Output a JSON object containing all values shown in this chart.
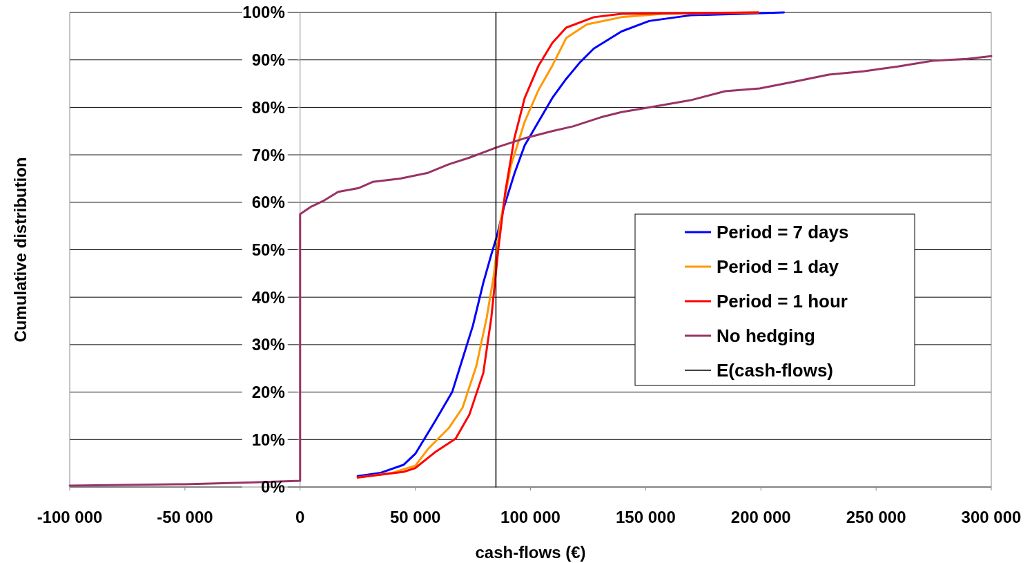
{
  "chart_data": {
    "type": "line",
    "xlabel": "cash-flows (€)",
    "ylabel": "Cumulative distribution",
    "xlim": [
      -100000,
      300000
    ],
    "ylim": [
      0,
      100
    ],
    "xticks": [
      {
        "value": -100000,
        "label": "-100 000"
      },
      {
        "value": -50000,
        "label": "-50 000"
      },
      {
        "value": 0,
        "label": "0"
      },
      {
        "value": 50000,
        "label": "50 000"
      },
      {
        "value": 100000,
        "label": "100 000"
      },
      {
        "value": 150000,
        "label": "150 000"
      },
      {
        "value": 200000,
        "label": "200 000"
      },
      {
        "value": 250000,
        "label": "250 000"
      },
      {
        "value": 300000,
        "label": "300 000"
      }
    ],
    "yticks": [
      {
        "value": 0,
        "label": "0%"
      },
      {
        "value": 10,
        "label": "10%"
      },
      {
        "value": 20,
        "label": "20%"
      },
      {
        "value": 30,
        "label": "30%"
      },
      {
        "value": 40,
        "label": "40%"
      },
      {
        "value": 50,
        "label": "50%"
      },
      {
        "value": 60,
        "label": "60%"
      },
      {
        "value": 70,
        "label": "70%"
      },
      {
        "value": 80,
        "label": "80%"
      },
      {
        "value": 90,
        "label": "90%"
      },
      {
        "value": 100,
        "label": "100%"
      }
    ],
    "grid": "y",
    "legend": "right",
    "marker": "none",
    "line_style": "solid",
    "series": [
      {
        "name": "Period = 7 days",
        "color": "#0000ff",
        "x": [
          25000,
          35000,
          45000,
          50000,
          58500,
          66000,
          70500,
          75000,
          79500,
          83000,
          85500,
          88500,
          93000,
          97500,
          103500,
          109500,
          115500,
          121500,
          127500,
          139500,
          151500,
          169500,
          210000
        ],
        "values": [
          2.3,
          3,
          4.7,
          7,
          13.8,
          20,
          27,
          34,
          43,
          49,
          53,
          59,
          66,
          72,
          77,
          82,
          86,
          89.5,
          92.4,
          96,
          98.2,
          99.4,
          100
        ]
      },
      {
        "name": "Period = 1 day",
        "color": "#ff9900",
        "x": [
          25000,
          40000,
          50000,
          55500,
          64500,
          70500,
          76500,
          81000,
          84000,
          87000,
          91500,
          97500,
          103500,
          109500,
          115500,
          124500,
          139500,
          157500,
          199000
        ],
        "values": [
          2,
          3,
          4.5,
          8,
          12.4,
          16.7,
          25.5,
          35.7,
          44.4,
          56,
          67.7,
          77,
          83.7,
          88.8,
          94.6,
          97.5,
          99,
          99.7,
          100
        ]
      },
      {
        "name": "Period = 1 hour",
        "color": "#ff0000",
        "x": [
          25000,
          45000,
          50000,
          58500,
          67500,
          73500,
          79500,
          83000,
          86000,
          89000,
          93000,
          97500,
          103500,
          109500,
          115500,
          127500,
          139500,
          199000
        ],
        "values": [
          2,
          3.2,
          4,
          7.3,
          10.2,
          15.3,
          24,
          35.7,
          50,
          62,
          73.5,
          82,
          88.8,
          93.6,
          96.8,
          99,
          99.7,
          100
        ]
      },
      {
        "name": "No hedging",
        "color": "#993366",
        "x": [
          -100000,
          -50000,
          -20000,
          0,
          0,
          4500,
          10500,
          16500,
          25500,
          31500,
          43500,
          55500,
          64500,
          73500,
          85500,
          97500,
          109500,
          118500,
          130500,
          139500,
          151500,
          169500,
          184500,
          199500,
          214500,
          229500,
          244500,
          259500,
          274500,
          289500,
          300000
        ],
        "values": [
          0.3,
          0.6,
          1,
          1.3,
          57.5,
          59,
          60.4,
          62.2,
          63,
          64.3,
          65,
          66.2,
          68,
          69.4,
          71.6,
          73.5,
          75,
          76,
          77.9,
          79,
          80,
          81.5,
          83.4,
          84,
          85.4,
          86.9,
          87.6,
          88.6,
          89.8,
          90.2,
          90.8
        ]
      },
      {
        "name": "E(cash-flows)",
        "color": "#000000",
        "x": [
          85000,
          85000
        ],
        "values": [
          0,
          100
        ]
      }
    ]
  }
}
